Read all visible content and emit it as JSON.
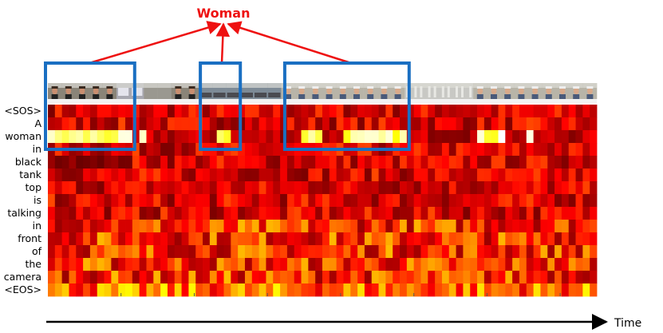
{
  "annotation": {
    "word": "Woman",
    "color": "#ee1111"
  },
  "tokens": [
    "<SOS>",
    "A",
    "woman",
    "in",
    "black",
    "tank",
    "top",
    "is",
    "talking",
    "in",
    "front",
    "of",
    "the",
    "camera",
    "<EOS>"
  ],
  "time_label": "Time",
  "highlight_color": "#1a6fc2",
  "frames": {
    "count": 40,
    "scenes": [
      {
        "from": 0,
        "to": 4,
        "scene": "woman-street"
      },
      {
        "from": 5,
        "to": 6,
        "scene": "street-sign"
      },
      {
        "from": 7,
        "to": 8,
        "scene": "street"
      },
      {
        "from": 9,
        "to": 10,
        "scene": "woman-street"
      },
      {
        "from": 11,
        "to": 16,
        "scene": "cars"
      },
      {
        "from": 17,
        "to": 25,
        "scene": "man-hat"
      },
      {
        "from": 26,
        "to": 30,
        "scene": "building"
      },
      {
        "from": 31,
        "to": 39,
        "scene": "man-hat"
      }
    ]
  },
  "heatmap": {
    "columns": 78,
    "colormap": "hot",
    "highlight_groups": [
      [
        0,
        11
      ],
      [
        22,
        26
      ],
      [
        34,
        50
      ]
    ],
    "woman_row_bright_cols": [
      0,
      1,
      2,
      3,
      4,
      5,
      6,
      7,
      8,
      9,
      10,
      11,
      13,
      24,
      25,
      36,
      37,
      38,
      42,
      43,
      44,
      45,
      46,
      47,
      48,
      49,
      50,
      61,
      62,
      63,
      64,
      68
    ]
  }
}
